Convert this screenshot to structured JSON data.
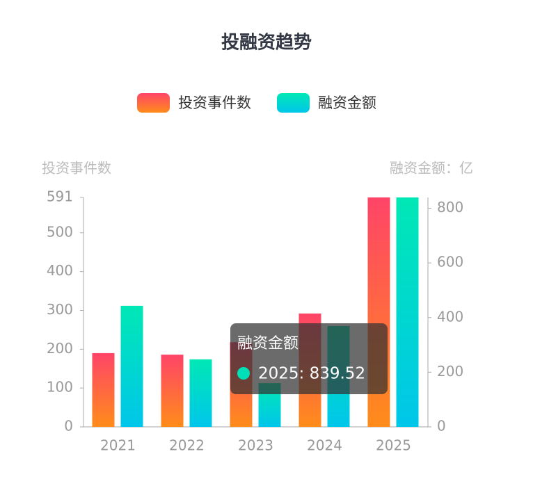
{
  "chart_data": {
    "type": "bar",
    "title": "投融资趋势",
    "y_label": "投资事件数",
    "y2_label": "融资金额：亿",
    "categories": [
      "2021",
      "2022",
      "2023",
      "2024",
      "2025"
    ],
    "series": [
      {
        "name": "投资事件数",
        "color": [
          "#ff4468",
          "#ff8c1a"
        ],
        "values": [
          190,
          186,
          218,
          292,
          591
        ]
      },
      {
        "name": "融资金额",
        "color": [
          "#00e8b5",
          "#00c6ea"
        ],
        "axis": "y2",
        "values": [
          443,
          247,
          160,
          369,
          839.52
        ]
      }
    ],
    "ylim": [
      0,
      591
    ],
    "yticks": [
      0,
      100,
      200,
      300,
      400,
      500,
      591
    ],
    "y2lim": [
      0,
      839.52
    ],
    "y2ticks": [
      0,
      200,
      400,
      600,
      800
    ],
    "tooltip": {
      "title": "融资金额",
      "label": "2025: 839.52",
      "color": "#00e0b8"
    }
  }
}
